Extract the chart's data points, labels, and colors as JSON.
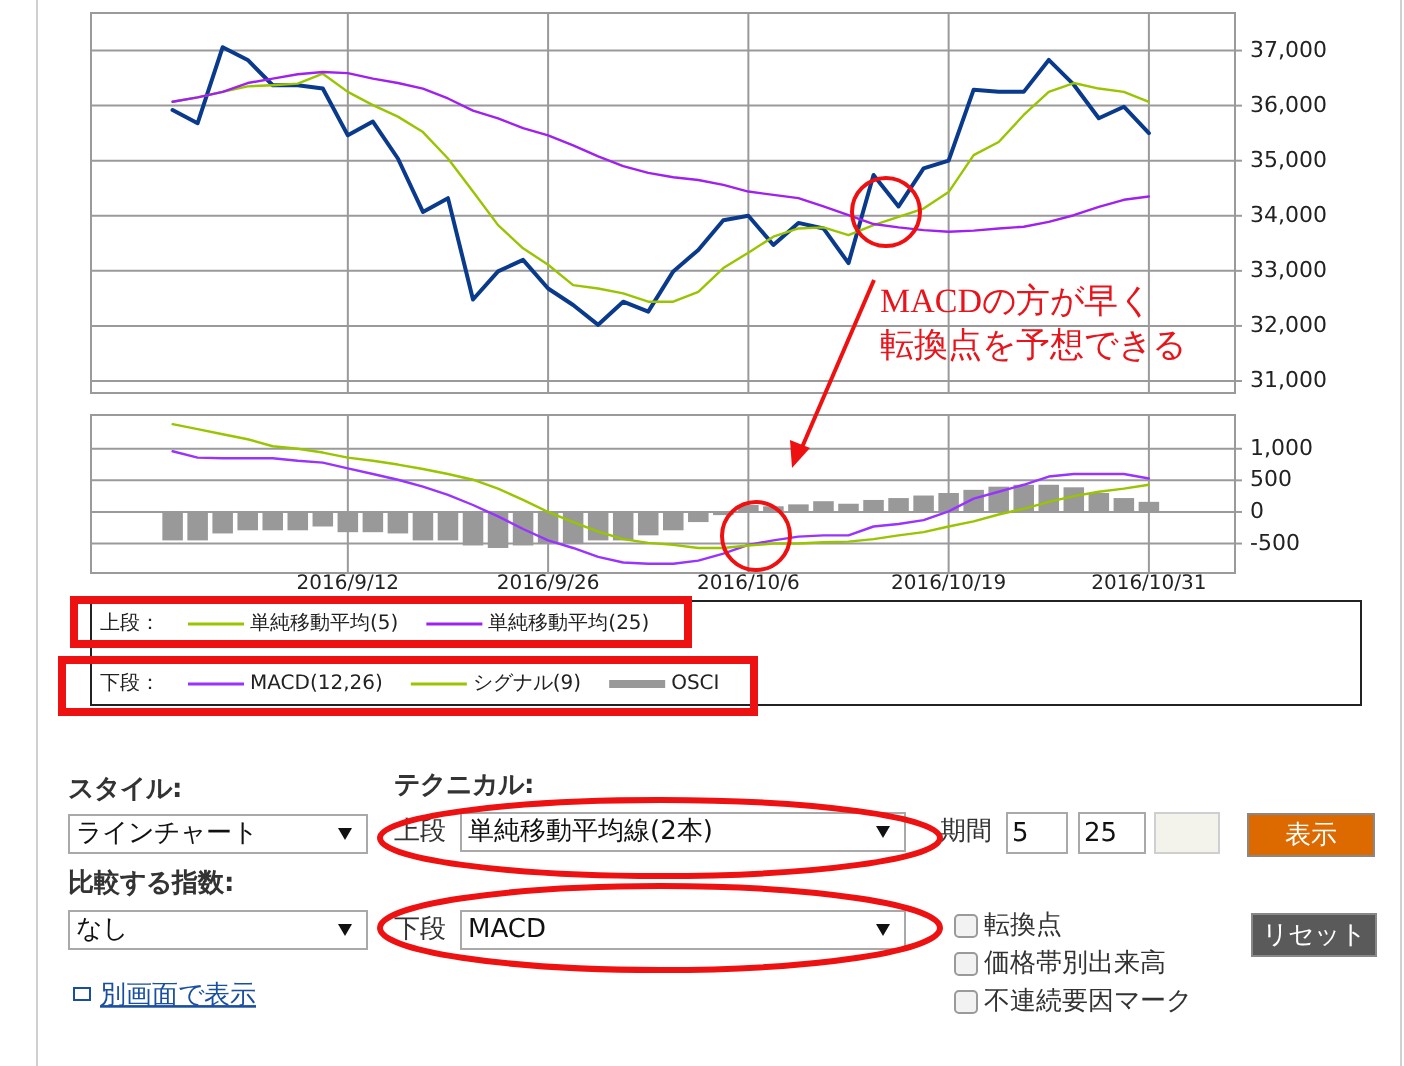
{
  "chart_data": [
    {
      "type": "line",
      "categories": [
        null,
        null,
        null,
        null,
        null,
        null,
        null,
        "2016/9/12",
        null,
        null,
        null,
        null,
        null,
        null,
        null,
        "2016/9/26",
        null,
        null,
        null,
        null,
        null,
        null,
        null,
        "2016/10/6",
        null,
        null,
        null,
        null,
        null,
        null,
        null,
        "2016/10/19",
        null,
        null,
        null,
        null,
        null,
        null,
        null,
        "2016/10/31"
      ],
      "series": [
        {
          "color": "#0a3a8c",
          "values": [
            35920,
            35680,
            37060,
            36830,
            36370,
            36370,
            36310,
            35460,
            35710,
            35040,
            34070,
            34320,
            32480,
            32990,
            33200,
            32680,
            32380,
            32020,
            32440,
            32260,
            32990,
            33380,
            33920,
            34000,
            33470,
            33870,
            33770,
            33140,
            34740,
            34170,
            34860,
            35000,
            36290,
            36250,
            36250,
            36830,
            36380,
            35770,
            35980,
            35500
          ]
        },
        {
          "name": "単純移動平均(5)",
          "color": "#99c400",
          "values": [
            36070,
            36150,
            36250,
            36350,
            36370,
            36400,
            36580,
            36250,
            36010,
            35800,
            35520,
            35040,
            34440,
            33830,
            33410,
            33110,
            32740,
            32680,
            32590,
            32440,
            32440,
            32620,
            33050,
            33330,
            33620,
            33770,
            33790,
            33650,
            33830,
            33980,
            34130,
            34430,
            35100,
            35340,
            35830,
            36250,
            36410,
            36310,
            36250,
            36070
          ]
        },
        {
          "name": "単純移動平均(25)",
          "color": "#a020f0",
          "values": [
            36070,
            36150,
            36250,
            36410,
            36490,
            36570,
            36610,
            36590,
            36490,
            36410,
            36310,
            36130,
            35910,
            35770,
            35590,
            35460,
            35280,
            35080,
            34900,
            34780,
            34700,
            34650,
            34560,
            34440,
            34380,
            34320,
            34170,
            34010,
            33850,
            33790,
            33740,
            33710,
            33730,
            33770,
            33800,
            33890,
            34010,
            34160,
            34290,
            34350
          ]
        }
      ],
      "ylim": [
        30800,
        37700
      ],
      "yticks": [
        {
          "value": 31000,
          "label": "31,000"
        },
        {
          "value": 32000,
          "label": "32,000"
        },
        {
          "value": 33000,
          "label": "33,000"
        },
        {
          "value": 34000,
          "label": "34,000"
        },
        {
          "value": 35000,
          "label": "35,000"
        },
        {
          "value": 36000,
          "label": "36,000"
        },
        {
          "value": 37000,
          "label": "37,000"
        }
      ],
      "grid": true,
      "legend": "bottom",
      "legend_title": "上段：",
      "tick_labels": "y",
      "marker": "none",
      "annotations": [
        "MACDの方が早く",
        "転換点を予想できる"
      ]
    },
    {
      "type": "line",
      "categories": [
        null,
        null,
        null,
        null,
        null,
        null,
        null,
        "2016/9/12",
        null,
        null,
        null,
        null,
        null,
        null,
        null,
        "2016/9/26",
        null,
        null,
        null,
        null,
        null,
        null,
        null,
        "2016/10/6",
        null,
        null,
        null,
        null,
        null,
        null,
        null,
        "2016/10/19",
        null,
        null,
        null,
        null,
        null,
        null,
        null,
        "2016/10/31"
      ],
      "series": [
        {
          "name": "MACD(12,26)",
          "color": "#9933ff",
          "values": [
            960,
            860,
            850,
            850,
            850,
            810,
            780,
            690,
            600,
            510,
            400,
            270,
            110,
            -70,
            -270,
            -450,
            -570,
            -710,
            -800,
            -820,
            -820,
            -770,
            -660,
            -520,
            -450,
            -390,
            -370,
            -370,
            -230,
            -190,
            -130,
            10,
            210,
            320,
            430,
            560,
            600,
            600,
            600,
            530
          ]
        },
        {
          "name": "シグナル(9)",
          "color": "#99c400",
          "values": [
            1390,
            1310,
            1230,
            1150,
            1040,
            1000,
            940,
            860,
            810,
            750,
            680,
            600,
            510,
            370,
            190,
            0,
            -160,
            -310,
            -430,
            -490,
            -520,
            -570,
            -570,
            -530,
            -500,
            -500,
            -480,
            -470,
            -430,
            -370,
            -320,
            -230,
            -150,
            -40,
            50,
            160,
            250,
            320,
            370,
            430
          ]
        },
        {
          "name": "OSCI",
          "type": "bar",
          "color": "#999999",
          "values": [
            -450,
            -450,
            -340,
            -290,
            -290,
            -290,
            -230,
            -320,
            -320,
            -340,
            -450,
            -450,
            -530,
            -570,
            -530,
            -500,
            -500,
            -450,
            -450,
            -370,
            -290,
            -160,
            -50,
            110,
            90,
            120,
            170,
            130,
            190,
            220,
            260,
            300,
            350,
            400,
            430,
            430,
            390,
            300,
            220,
            160
          ]
        }
      ],
      "ylim": [
        -950,
        1550
      ],
      "yticks": [
        {
          "value": -500,
          "label": "-500"
        },
        0,
        500,
        {
          "value": 1000,
          "label": "1,000"
        }
      ],
      "grid": true,
      "legend": "bottom",
      "legend_title": "下段：",
      "marker": "none"
    },
    {
      "type": "other",
      "annotations": [
        "スタイル:",
        "ラインチャート",
        "テクニカル:",
        "上段",
        "単純移動平均線(2本)",
        "期間",
        "5",
        "25",
        "表示",
        "比較する指数:",
        "なし",
        "下段",
        "MACD",
        "転換点",
        "価格帯別出来高",
        "不連続要因マーク",
        "リセット",
        "別画面で表示"
      ]
    }
  ]
}
